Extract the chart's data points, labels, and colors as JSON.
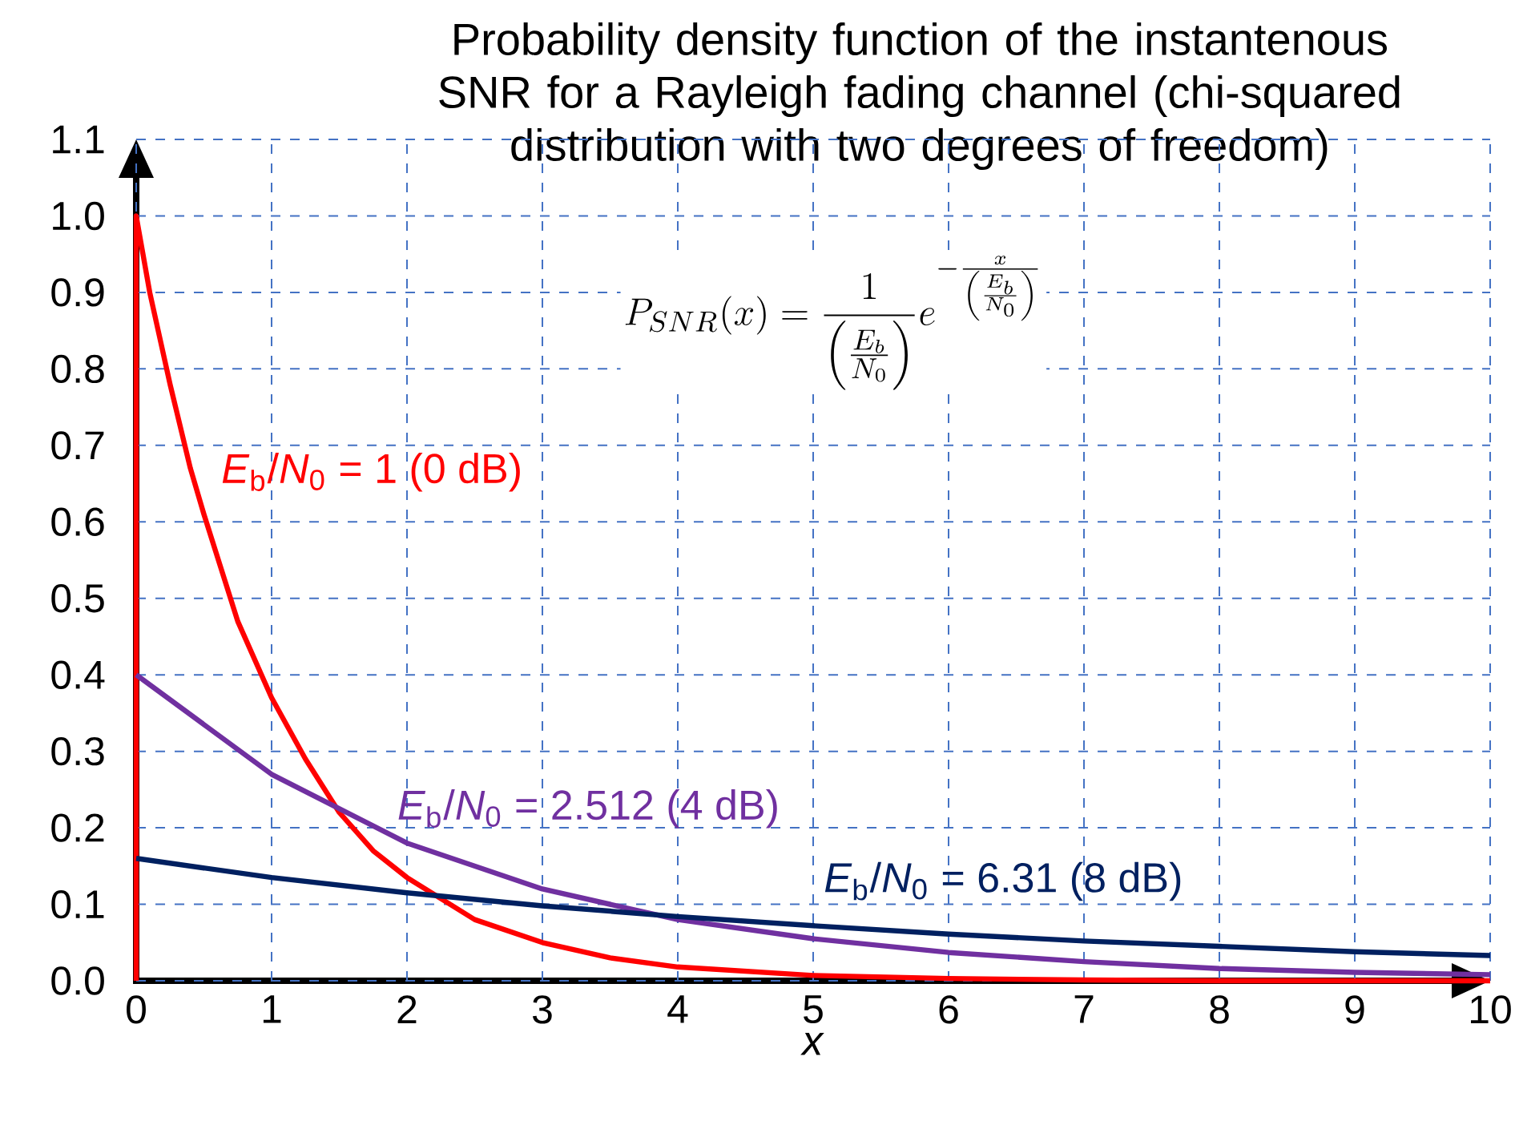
{
  "chart_data": {
    "type": "line",
    "title": "Probability density function of the instantenous SNR for a Rayleigh fading channel (chi-squared distribution with two degrees of freedom)",
    "xlabel": "*x*",
    "annotations": [
      "P_{SNR}(x)=\\frac{1}{\\left(\\frac{E_b}{N_0}\\right)}e^{-\\frac{x}{\\left(\\frac{E_b}{N_0}\\right)}}"
    ],
    "xlim": [
      0,
      10
    ],
    "ylim": [
      0,
      1.1
    ],
    "xticks": [
      0,
      1,
      2,
      3,
      4,
      5,
      6,
      7,
      8,
      9,
      10
    ],
    "yticks": [
      {
        "value": 0,
        "label": "0.0"
      },
      {
        "value": 0.1,
        "label": "0.1"
      },
      {
        "value": 0.2,
        "label": "0.2"
      },
      {
        "value": 0.3,
        "label": "0.3"
      },
      {
        "value": 0.4,
        "label": "0.4"
      },
      {
        "value": 0.5,
        "label": "0.5"
      },
      {
        "value": 0.6,
        "label": "0.6"
      },
      {
        "value": 0.7,
        "label": "0.7"
      },
      {
        "value": 0.8,
        "label": "0.8"
      },
      {
        "value": 0.9,
        "label": "0.9"
      },
      {
        "value": 1,
        "label": "1.0"
      },
      {
        "value": 1.1,
        "label": "1.1"
      }
    ],
    "grid": true,
    "series": [
      {
        "name": "*E*$_{b}$/*N*$_{0}$ = 1 (0 dB)",
        "color": "#ff0000",
        "x": [
          0,
          0,
          0.1,
          0.25,
          0.4,
          0.5,
          0.75,
          1,
          1.25,
          1.5,
          1.75,
          2,
          2.5,
          3,
          3.5,
          4,
          5,
          6,
          7,
          8,
          10
        ],
        "values": [
          0,
          1,
          0.9,
          0.78,
          0.67,
          0.61,
          0.47,
          0.37,
          0.29,
          0.22,
          0.17,
          0.135,
          0.08,
          0.05,
          0.03,
          0.018,
          0.007,
          0.003,
          0.001,
          0,
          0
        ]
      },
      {
        "name": "*E*$_{b}$/*N*$_{0}$ = 2.512 (4 dB)",
        "color": "#7030a0",
        "x": [
          0,
          1,
          2,
          3,
          4,
          5,
          6,
          7,
          8,
          9,
          10
        ],
        "values": [
          0.4,
          0.27,
          0.18,
          0.12,
          0.08,
          0.055,
          0.037,
          0.025,
          0.016,
          0.011,
          0.008
        ]
      },
      {
        "name": "*E*$_{b}$/*N*$_{0}$ = 6.31 (8 dB)",
        "color": "#002060",
        "x": [
          0,
          1,
          2,
          3,
          4,
          5,
          6,
          7,
          8,
          9,
          10
        ],
        "values": [
          0.16,
          0.135,
          0.115,
          0.098,
          0.084,
          0.072,
          0.061,
          0.052,
          0.045,
          0.038,
          0.033
        ]
      }
    ]
  }
}
